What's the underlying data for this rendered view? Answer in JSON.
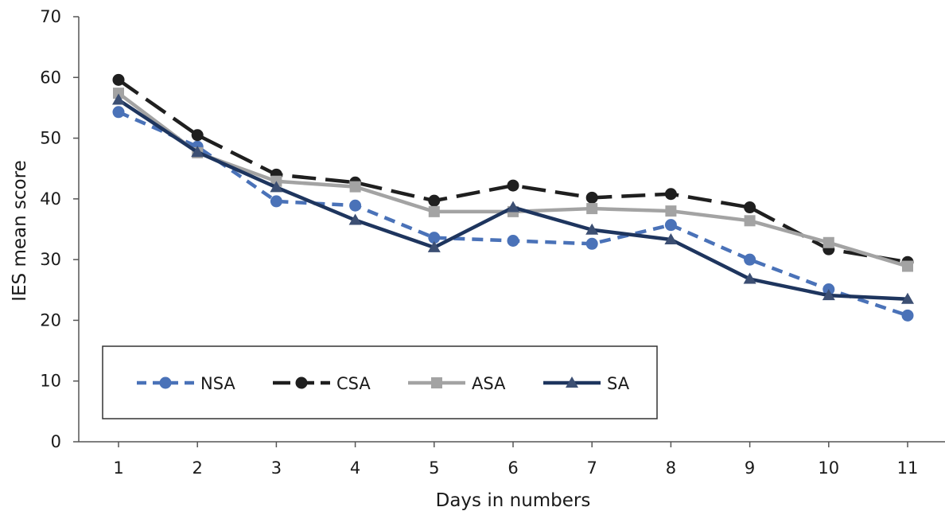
{
  "chart_data": {
    "type": "line",
    "title": "",
    "xlabel": "Days in numbers",
    "ylabel": "IES mean score",
    "ylim": [
      0,
      70
    ],
    "yticks": [
      0,
      10,
      20,
      30,
      40,
      50,
      60,
      70
    ],
    "x": [
      1,
      2,
      3,
      4,
      5,
      6,
      7,
      8,
      9,
      10,
      11
    ],
    "grid": false,
    "legend_position": "bottom-left",
    "series": [
      {
        "name": "NSA",
        "color": "#4a72b8",
        "dash": "dashed",
        "marker": "circle",
        "values": [
          54.3,
          48.6,
          39.6,
          38.9,
          33.6,
          33.1,
          32.6,
          35.7,
          30.0,
          25.1,
          20.8
        ]
      },
      {
        "name": "CSA",
        "color": "#1f1f1f",
        "dash": "long-dash",
        "marker": "circle",
        "values": [
          59.6,
          50.5,
          44.0,
          42.7,
          39.7,
          42.2,
          40.2,
          40.8,
          38.6,
          31.7,
          29.6
        ]
      },
      {
        "name": "ASA",
        "color": "#a3a3a3",
        "dash": "solid",
        "marker": "square",
        "values": [
          57.4,
          47.6,
          42.9,
          42.0,
          37.9,
          37.9,
          38.4,
          38.0,
          36.4,
          32.8,
          28.9
        ]
      },
      {
        "name": "SA",
        "color": "#1e355e",
        "dash": "solid",
        "marker": "triangle",
        "values": [
          56.3,
          47.7,
          41.9,
          36.5,
          32.0,
          38.6,
          34.9,
          33.3,
          26.8,
          24.1,
          23.5
        ]
      }
    ]
  }
}
